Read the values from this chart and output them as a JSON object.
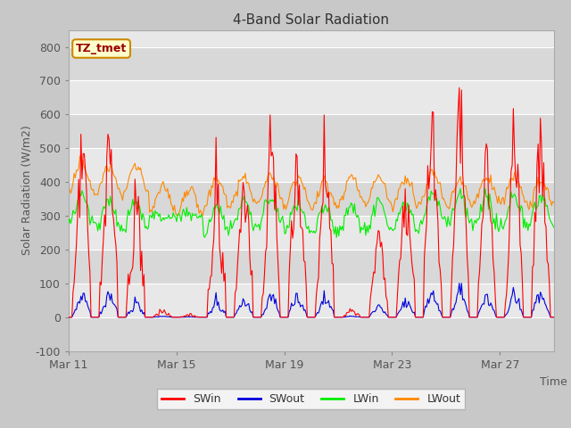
{
  "title": "4-Band Solar Radiation",
  "xlabel": "Time",
  "ylabel": "Solar Radiation (W/m2)",
  "ylim": [
    -100,
    850
  ],
  "yticks": [
    -100,
    0,
    100,
    200,
    300,
    400,
    500,
    600,
    700,
    800
  ],
  "xtick_labels": [
    "Mar 11",
    "Mar 15",
    "Mar 19",
    "Mar 23",
    "Mar 27"
  ],
  "xtick_positions": [
    0,
    4,
    8,
    12,
    16
  ],
  "line_colors": {
    "SWin": "#ff0000",
    "SWout": "#0000dd",
    "LWin": "#00ee00",
    "LWout": "#ff8800"
  },
  "annotation_label": "TZ_tmet",
  "annotation_color": "#990000",
  "annotation_bg": "#ffffcc",
  "annotation_border": "#cc8800",
  "fig_bg": "#c8c8c8",
  "plot_bg": "#e8e8e8",
  "band_color": "#d8d8d8",
  "n_days": 18,
  "hours_per_day": 24,
  "day_peaks_SWin": [
    570,
    570,
    430,
    140,
    50,
    560,
    420,
    630,
    500,
    630,
    130,
    270,
    400,
    640,
    700,
    540,
    650,
    620
  ]
}
